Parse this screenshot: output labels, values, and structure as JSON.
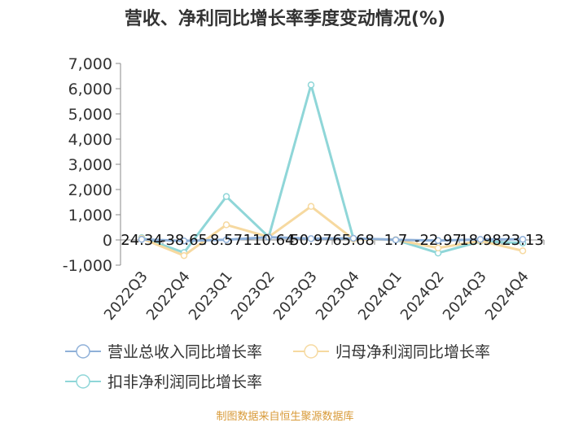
{
  "chart_data": {
    "type": "line",
    "title": "营收、净利同比增长率季度变动情况(%)",
    "categories": [
      "2022Q3",
      "2022Q4",
      "2023Q1",
      "2023Q2",
      "2023Q3",
      "2023Q4",
      "2024Q1",
      "2024Q2",
      "2024Q3",
      "2024Q4"
    ],
    "series": [
      {
        "name": "营业总收入同比增长率",
        "color": "#8fb0d8",
        "values": [
          24.34,
          -38.65,
          8.57,
          110.64,
          50.97,
          65.68,
          1.7,
          -22.97,
          18.98,
          23.13
        ]
      },
      {
        "name": "归母净利润同比增长率",
        "color": "#f6d9a0",
        "values": [
          60,
          -620,
          600,
          120,
          1330,
          30,
          10,
          -320,
          -40,
          -430
        ]
      },
      {
        "name": "扣非净利润同比增长率",
        "color": "#8fd6d8",
        "values": [
          90,
          -500,
          1720,
          120,
          6150,
          50,
          5,
          -520,
          -60,
          -120
        ]
      }
    ],
    "data_labels": [
      "24.34",
      "-38.65",
      "8.57",
      "110.64",
      "50.97",
      "65.68",
      "1.7",
      "-22.97",
      "18.98",
      "23.13"
    ],
    "ylim": [
      -1000,
      7000
    ],
    "yticks": [
      "-1,000",
      "0",
      "1,000",
      "2,000",
      "3,000",
      "4,000",
      "5,000",
      "6,000",
      "7,000"
    ],
    "ytick_values": [
      -1000,
      0,
      1000,
      2000,
      3000,
      4000,
      5000,
      6000,
      7000
    ],
    "legend_position": "bottom",
    "grid": false,
    "source": "制图数据来自恒生聚源数据库"
  }
}
